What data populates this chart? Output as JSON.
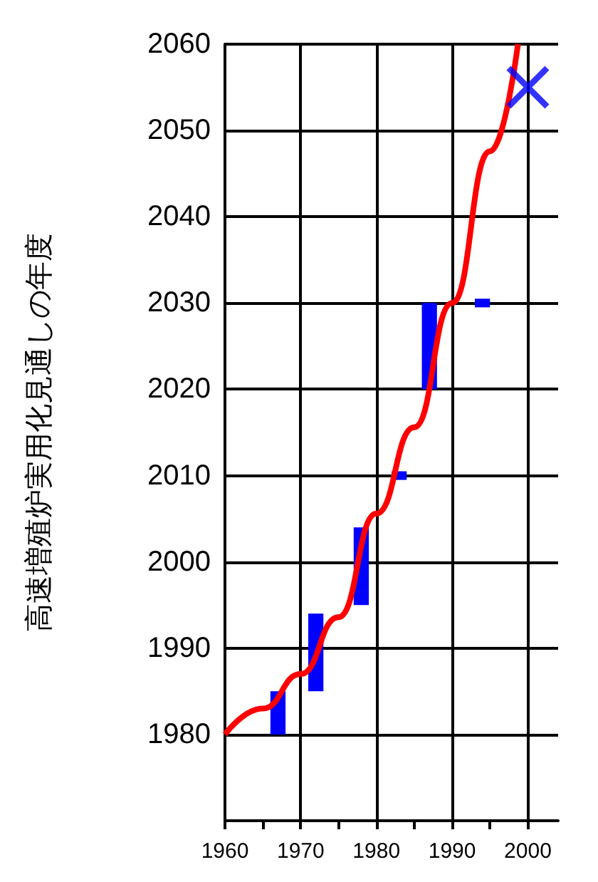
{
  "chart_data": {
    "type": "bar",
    "ylabel": "高速増殖炉実用化見通しの年度",
    "xlim": [
      1960,
      2004
    ],
    "xticks": [
      1960,
      1970,
      1980,
      1990,
      2000
    ],
    "ylim": [
      1970,
      2060
    ],
    "yticks": [
      1980,
      1990,
      2000,
      2010,
      2020,
      2030,
      2040,
      2050,
      2060
    ],
    "grid": true,
    "series": [
      {
        "color": "#0000ff",
        "x": [
          1967,
          1972,
          1978,
          1983,
          1987,
          1994
        ],
        "base": [
          1980,
          1985,
          1995,
          2009.5,
          2020,
          2029.5
        ],
        "values": [
          5,
          9,
          9,
          1,
          10,
          1
        ]
      },
      {
        "type": "line",
        "color": "#ff0000",
        "marker": "none",
        "x": [
          1960,
          1965,
          1970,
          1975,
          1980,
          1985,
          1990,
          1995,
          1998.7
        ],
        "values": [
          1980,
          1983,
          1987,
          1993.6,
          2005.6,
          2015.6,
          2030,
          2047.6,
          2060
        ]
      },
      {
        "type": "scatter",
        "color": "#0000ff",
        "marker": "cross",
        "x": [
          2000
        ],
        "values": [
          2055
        ]
      }
    ]
  }
}
